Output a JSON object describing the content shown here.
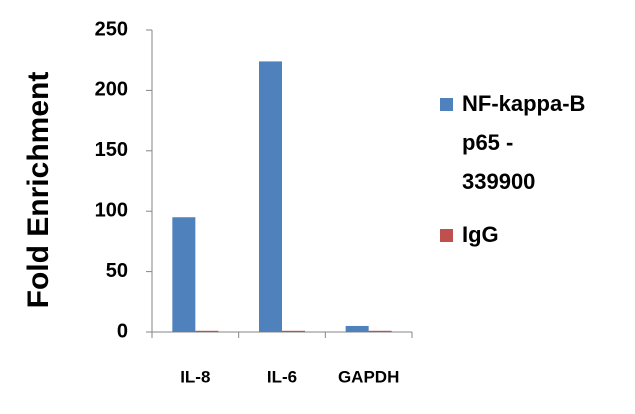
{
  "chart_data": {
    "type": "bar",
    "y_label": "Fold Enrichment",
    "categories": [
      "IL-8",
      "IL-6",
      "GAPDH"
    ],
    "series": [
      {
        "name": "NF-kappa-B p65 - 339900",
        "color": "#4f81bd",
        "values": [
          95,
          224,
          5
        ]
      },
      {
        "name": "IgG",
        "color": "#c0504d",
        "values": [
          1,
          1,
          1
        ]
      }
    ],
    "ylim": [
      0,
      250
    ],
    "yticks": [
      0,
      50,
      100,
      150,
      200,
      250
    ],
    "grid": false,
    "legend": "right"
  }
}
